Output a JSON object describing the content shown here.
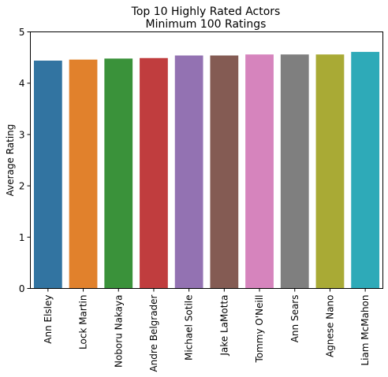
{
  "chart_data": {
    "type": "bar",
    "title_lines": [
      "Top 10 Highly Rated Actors",
      "Minimum 100 Ratings"
    ],
    "xlabel": "",
    "ylabel": "Average Rating",
    "categories": [
      "Ann Elsley",
      "Lock Martin",
      "Noboru Nakaya",
      "Andre Belgrader",
      "Michael Sotile",
      "Jake LaMotta",
      "Tommy O'Neill",
      "Ann Sears",
      "Agnese Nano",
      "Liam McMahon"
    ],
    "values": [
      4.44,
      4.46,
      4.48,
      4.49,
      4.54,
      4.54,
      4.56,
      4.56,
      4.56,
      4.61
    ],
    "colors": [
      "#3274a1",
      "#e1812c",
      "#3a923a",
      "#c03d3e",
      "#9372b2",
      "#845b53",
      "#d684bd",
      "#7f7f7f",
      "#a9aa35",
      "#2eaab8"
    ],
    "ylim": [
      0,
      5
    ],
    "yticks": [
      0,
      1,
      2,
      3,
      4,
      5
    ],
    "grid": false,
    "legend": "none"
  }
}
